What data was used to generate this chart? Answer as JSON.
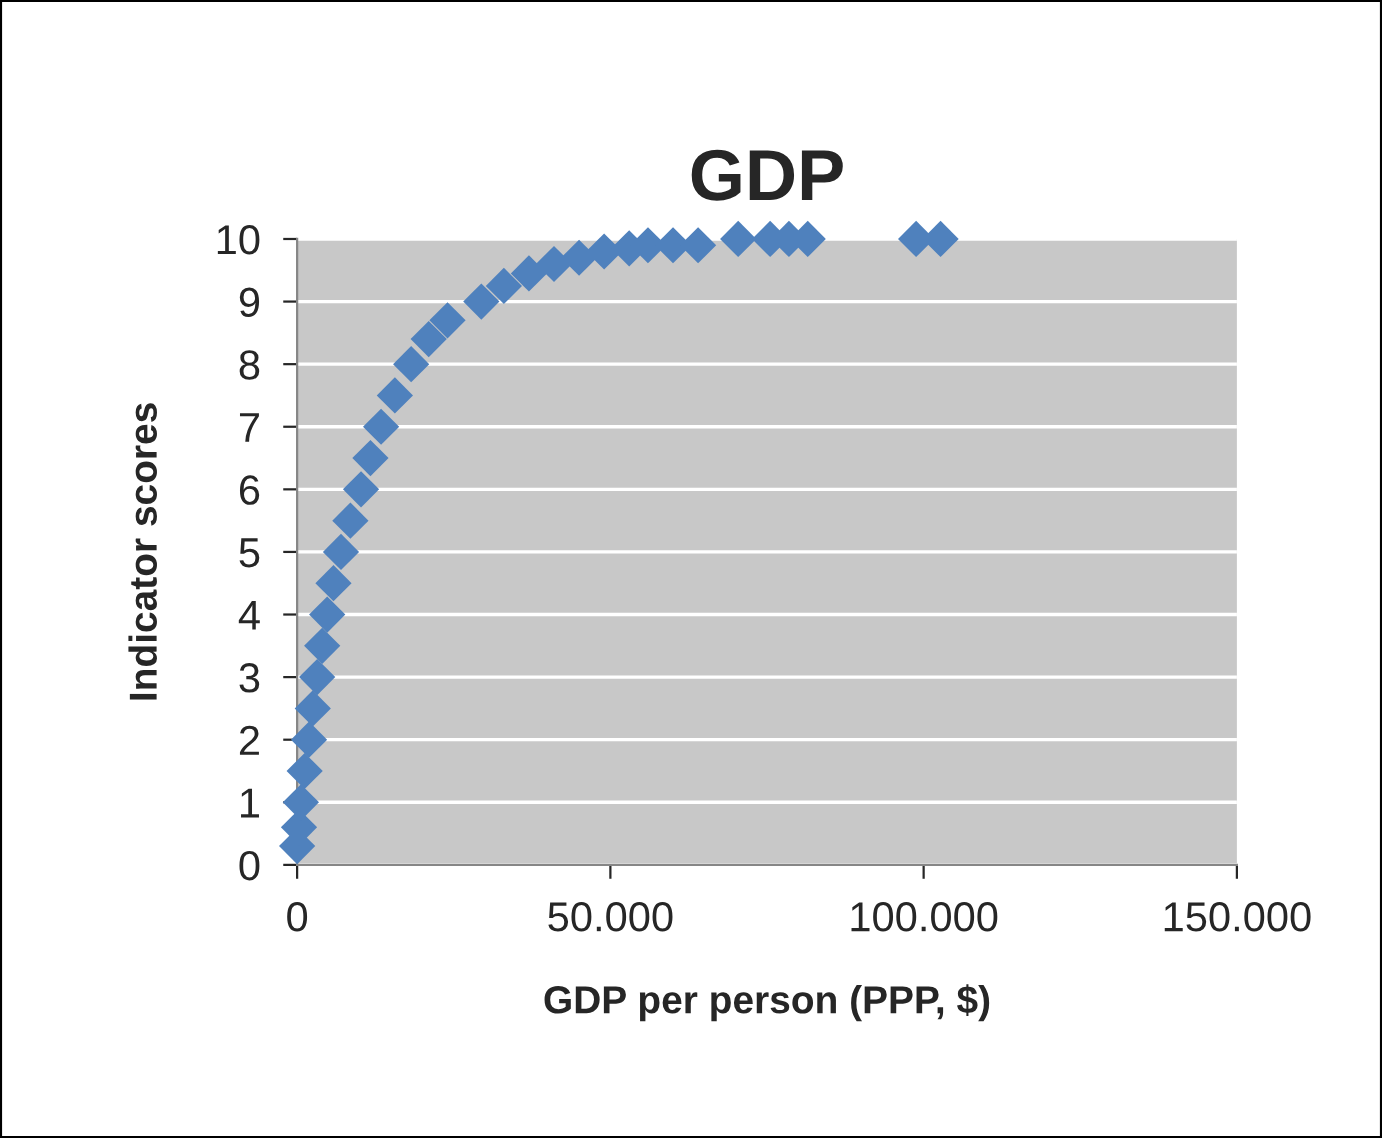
{
  "chart_data": {
    "type": "scatter",
    "title": "GDP",
    "xlabel": "GDP per person (PPP, $)",
    "ylabel": "Indicator scores",
    "x": [
      0,
      300,
      600,
      1200,
      1900,
      2500,
      3200,
      4000,
      4800,
      5800,
      7000,
      8500,
      10200,
      11700,
      13400,
      15600,
      18200,
      21000,
      24000,
      29400,
      33000,
      37000,
      41000,
      45000,
      49000,
      53000,
      56000,
      60000,
      64000,
      70400,
      75500,
      78500,
      81500,
      98800,
      102700
    ],
    "series": [
      {
        "color": "#4f81bd",
        "values": [
          0.3,
          0.6,
          1,
          1.5,
          2,
          2.5,
          3,
          3.5,
          4,
          4.5,
          5,
          5.5,
          6,
          6.5,
          7,
          7.5,
          8,
          8.4,
          8.7,
          9,
          9.25,
          9.45,
          9.6,
          9.7,
          9.8,
          9.85,
          9.9,
          9.9,
          9.9,
          10,
          10,
          10,
          10,
          10,
          10
        ]
      }
    ],
    "xlim": [
      0,
      150000
    ],
    "xticks": [
      0,
      {
        "value": 50000,
        "label": "50.000"
      },
      {
        "value": 100000,
        "label": "100.000"
      },
      {
        "value": 150000,
        "label": "150.000"
      }
    ],
    "ylim": [
      0,
      10
    ],
    "yticks": [
      0,
      1,
      2,
      3,
      4,
      5,
      6,
      7,
      8,
      9,
      10
    ],
    "grid": "y",
    "marker": "diamond"
  }
}
